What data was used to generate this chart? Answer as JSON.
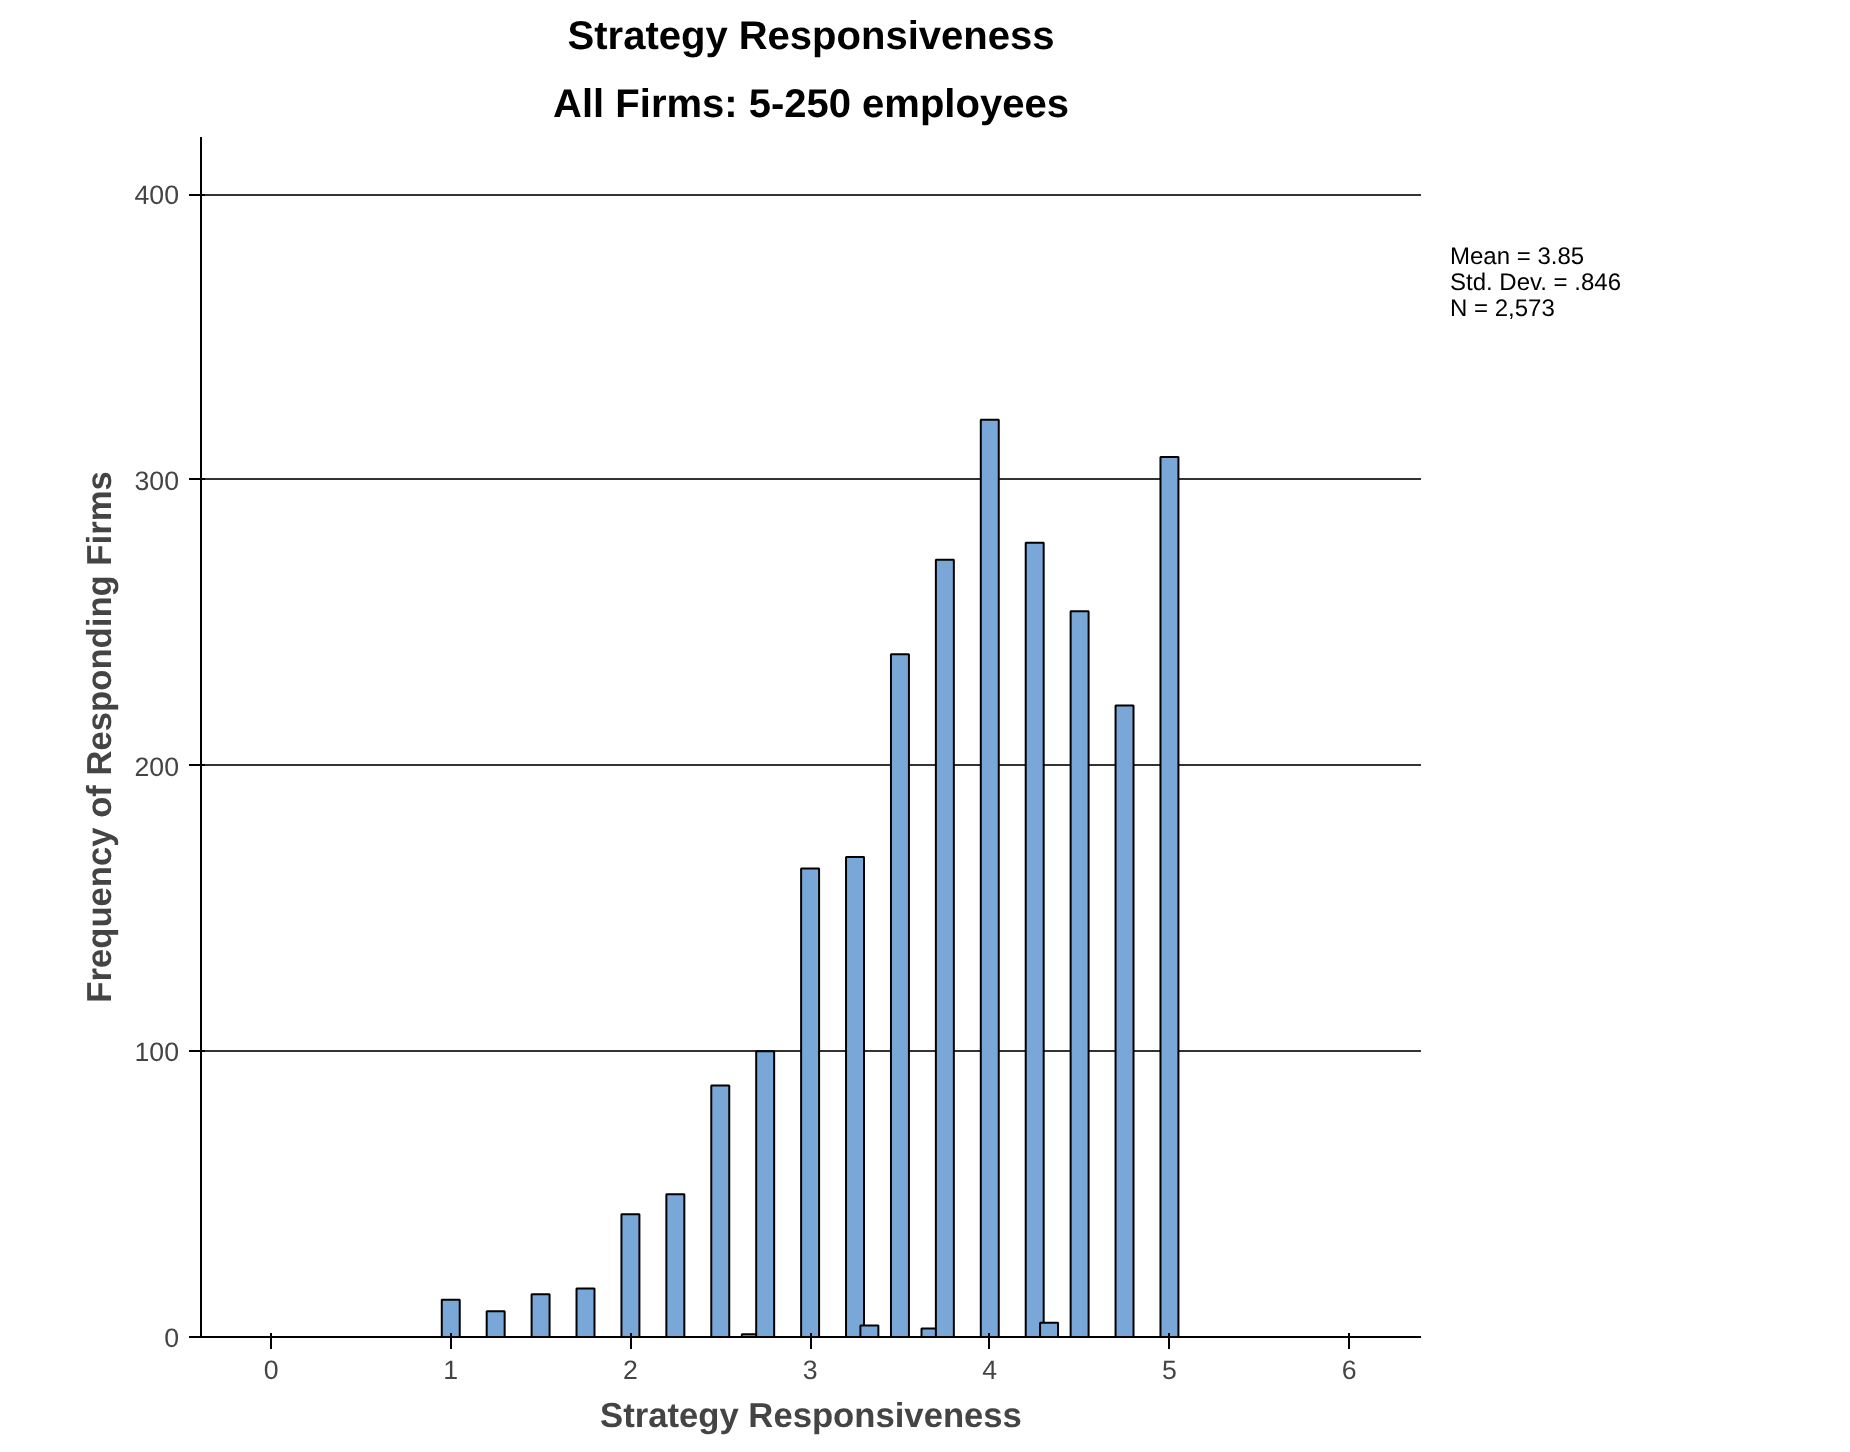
{
  "chart_data": {
    "type": "bar",
    "title": "Strategy Responsiveness",
    "subtitle": "All Firms: 5-250 employees",
    "xlabel": "Strategy Responsiveness",
    "ylabel": "Frequency of Responding Firms",
    "x": [
      1.0,
      1.25,
      1.5,
      1.75,
      2.0,
      2.25,
      2.5,
      2.67,
      2.75,
      3.0,
      3.25,
      3.33,
      3.5,
      3.67,
      3.75,
      4.0,
      4.25,
      4.33,
      4.5,
      4.75,
      5.0
    ],
    "values": [
      13,
      9,
      15,
      17,
      43,
      50,
      88,
      1,
      100,
      164,
      168,
      4,
      239,
      3,
      272,
      321,
      278,
      5,
      254,
      221,
      308
    ],
    "color": "#79a8d8",
    "xlim": [
      -0.39,
      6.4
    ],
    "ylim": [
      0,
      420
    ],
    "xticks": [
      0,
      1,
      2,
      3,
      4,
      5,
      6
    ],
    "yticks": [
      0,
      100,
      200,
      300,
      400
    ],
    "grid": "y",
    "annotations": [
      "Mean = 3.85",
      "Std. Dev. = .846",
      "N = 2,573"
    ]
  }
}
